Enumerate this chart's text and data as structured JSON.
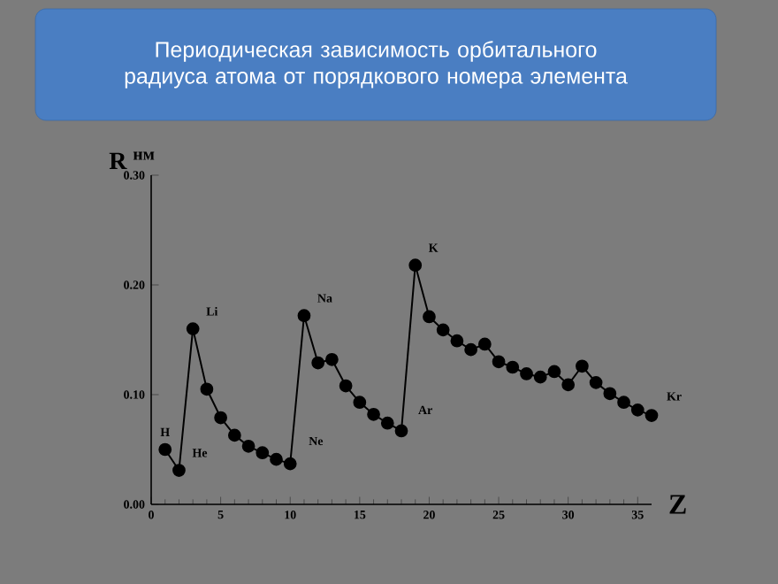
{
  "chart_data": {
    "type": "line",
    "title": "Периодическая зависимость  орбитального радиуса атома от порядкового номера элемента",
    "xlabel": "Z",
    "ylabel": "R $^{нм}$",
    "x": [
      1,
      2,
      3,
      4,
      5,
      6,
      7,
      8,
      9,
      10,
      11,
      12,
      13,
      14,
      15,
      16,
      17,
      18,
      19,
      20,
      21,
      22,
      23,
      24,
      25,
      26,
      27,
      28,
      29,
      30,
      31,
      32,
      33,
      34,
      35,
      36
    ],
    "values": [
      0.05,
      0.031,
      0.16,
      0.105,
      0.079,
      0.063,
      0.053,
      0.047,
      0.041,
      0.037,
      0.172,
      0.129,
      0.132,
      0.108,
      0.093,
      0.082,
      0.074,
      0.067,
      0.218,
      0.171,
      0.159,
      0.149,
      0.141,
      0.146,
      0.13,
      0.125,
      0.119,
      0.116,
      0.121,
      0.109,
      0.126,
      0.111,
      0.101,
      0.093,
      0.086,
      0.081
    ],
    "color": "#000000",
    "marker": "circle",
    "line_style": "solid",
    "xlim": [
      0,
      36
    ],
    "ylim": [
      0,
      0.3
    ],
    "xticks": [
      0,
      5,
      10,
      15,
      20,
      25,
      30,
      35
    ],
    "yticks": [
      {
        "value": 0,
        "label": "0.00"
      },
      {
        "value": 0.1,
        "label": "0.10"
      },
      {
        "value": 0.2,
        "label": "0.20"
      },
      {
        "value": 0.3,
        "label": "0.30"
      }
    ],
    "annotations": [
      {
        "text": "H",
        "x": 1,
        "y": 0.05
      },
      {
        "text": "He",
        "x": 2,
        "y": 0.031
      },
      {
        "text": "Li",
        "x": 3,
        "y": 0.16
      },
      {
        "text": "Na",
        "x": 11,
        "y": 0.172
      },
      {
        "text": "Ne",
        "x": 10,
        "y": 0.037
      },
      {
        "text": "K",
        "x": 19,
        "y": 0.218
      },
      {
        "text": "Ar",
        "x": 18,
        "y": 0.067
      },
      {
        "text": "Kr",
        "x": 36,
        "y": 0.081
      }
    ]
  }
}
